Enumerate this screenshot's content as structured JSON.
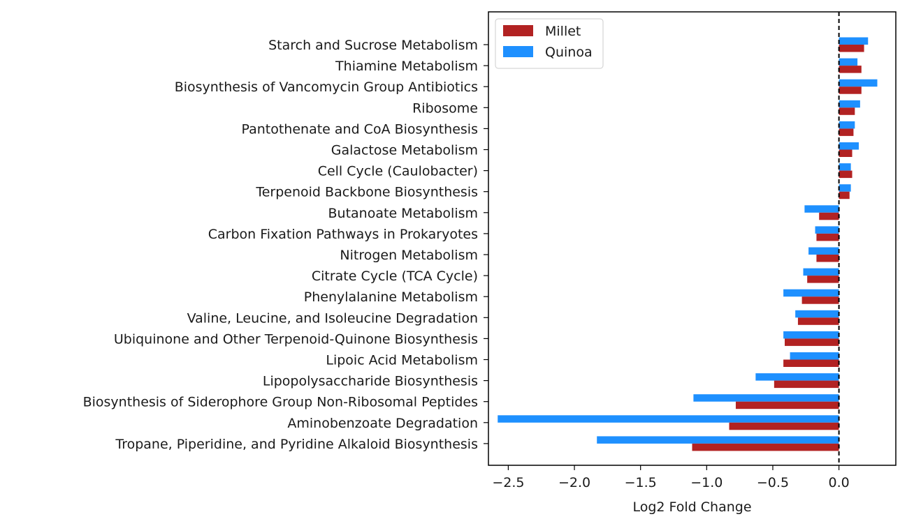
{
  "chart_data": {
    "type": "bar",
    "orientation": "horizontal",
    "xlabel": "Log2 Fold Change",
    "ylabel": "",
    "xlim": [
      -2.65,
      0.43
    ],
    "xticks": [
      -2.5,
      -2.0,
      -1.5,
      -1.0,
      -0.5,
      0.0
    ],
    "xtick_labels": [
      "−2.5",
      "−2.0",
      "−1.5",
      "−1.0",
      "−0.5",
      "0.0"
    ],
    "reference_line": {
      "x": 0.0,
      "style": "dashed"
    },
    "legend_position": "top-left",
    "grid": false,
    "categories": [
      "Starch and Sucrose Metabolism",
      "Thiamine Metabolism",
      "Biosynthesis of Vancomycin Group Antibiotics",
      "Ribosome",
      "Pantothenate and CoA Biosynthesis",
      "Galactose Metabolism",
      "Cell Cycle (Caulobacter)",
      "Terpenoid Backbone Biosynthesis",
      "Butanoate Metabolism",
      "Carbon Fixation Pathways in Prokaryotes",
      "Nitrogen Metabolism",
      "Citrate Cycle (TCA Cycle)",
      "Phenylalanine Metabolism",
      "Valine, Leucine, and Isoleucine Degradation",
      "Ubiquinone and Other Terpenoid-Quinone Biosynthesis",
      "Lipoic Acid Metabolism",
      "Lipopolysaccharide Biosynthesis",
      "Biosynthesis of Siderophore Group Non-Ribosomal Peptides",
      "Aminobenzoate Degradation",
      "Tropane, Piperidine, and Pyridine Alkaloid Biosynthesis"
    ],
    "series": [
      {
        "name": "Millet",
        "color": "#b22222",
        "values": [
          0.19,
          0.17,
          0.17,
          0.12,
          0.11,
          0.1,
          0.1,
          0.08,
          -0.15,
          -0.17,
          -0.17,
          -0.24,
          -0.28,
          -0.31,
          -0.41,
          -0.42,
          -0.49,
          -0.78,
          -0.83,
          -1.11
        ]
      },
      {
        "name": "Quinoa",
        "color": "#1e90ff",
        "values": [
          0.22,
          0.14,
          0.29,
          0.16,
          0.12,
          0.15,
          0.09,
          0.09,
          -0.26,
          -0.18,
          -0.23,
          -0.27,
          -0.42,
          -0.33,
          -0.42,
          -0.37,
          -0.63,
          -1.1,
          -2.58,
          -1.83
        ]
      }
    ]
  }
}
